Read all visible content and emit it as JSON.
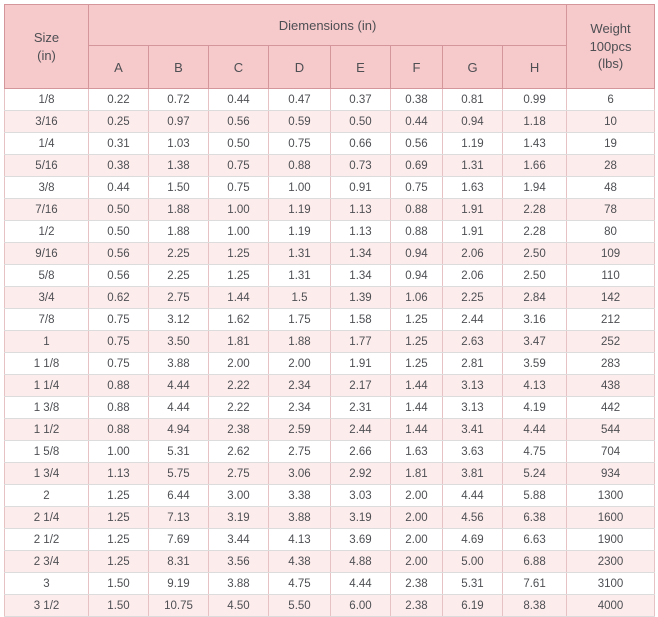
{
  "colors": {
    "header_bg": "#f6c9cb",
    "row_alt_bg": "#fdecec",
    "row_bg": "#ffffff",
    "border_dark": "#d4969a",
    "border_v": "#e6c2c4",
    "border_h": "#dcdcdc",
    "text": "#4d4f53"
  },
  "table": {
    "size_header": [
      "Size",
      "(in)"
    ],
    "dimensions_header": "Diemensions (in)",
    "weight_header": [
      "Weight",
      "100pcs",
      "(lbs)"
    ],
    "dim_columns": [
      "A",
      "B",
      "C",
      "D",
      "E",
      "F",
      "G",
      "H"
    ],
    "rows": [
      [
        "1/8",
        "0.22",
        "0.72",
        "0.44",
        "0.47",
        "0.37",
        "0.38",
        "0.81",
        "0.99",
        "6"
      ],
      [
        "3/16",
        "0.25",
        "0.97",
        "0.56",
        "0.59",
        "0.50",
        "0.44",
        "0.94",
        "1.18",
        "10"
      ],
      [
        "1/4",
        "0.31",
        "1.03",
        "0.50",
        "0.75",
        "0.66",
        "0.56",
        "1.19",
        "1.43",
        "19"
      ],
      [
        "5/16",
        "0.38",
        "1.38",
        "0.75",
        "0.88",
        "0.73",
        "0.69",
        "1.31",
        "1.66",
        "28"
      ],
      [
        "3/8",
        "0.44",
        "1.50",
        "0.75",
        "1.00",
        "0.91",
        "0.75",
        "1.63",
        "1.94",
        "48"
      ],
      [
        "7/16",
        "0.50",
        "1.88",
        "1.00",
        "1.19",
        "1.13",
        "0.88",
        "1.91",
        "2.28",
        "78"
      ],
      [
        "1/2",
        "0.50",
        "1.88",
        "1.00",
        "1.19",
        "1.13",
        "0.88",
        "1.91",
        "2.28",
        "80"
      ],
      [
        "9/16",
        "0.56",
        "2.25",
        "1.25",
        "1.31",
        "1.34",
        "0.94",
        "2.06",
        "2.50",
        "109"
      ],
      [
        "5/8",
        "0.56",
        "2.25",
        "1.25",
        "1.31",
        "1.34",
        "0.94",
        "2.06",
        "2.50",
        "110"
      ],
      [
        "3/4",
        "0.62",
        "2.75",
        "1.44",
        "1.5",
        "1.39",
        "1.06",
        "2.25",
        "2.84",
        "142"
      ],
      [
        "7/8",
        "0.75",
        "3.12",
        "1.62",
        "1.75",
        "1.58",
        "1.25",
        "2.44",
        "3.16",
        "212"
      ],
      [
        "1",
        "0.75",
        "3.50",
        "1.81",
        "1.88",
        "1.77",
        "1.25",
        "2.63",
        "3.47",
        "252"
      ],
      [
        "1 1/8",
        "0.75",
        "3.88",
        "2.00",
        "2.00",
        "1.91",
        "1.25",
        "2.81",
        "3.59",
        "283"
      ],
      [
        "1 1/4",
        "0.88",
        "4.44",
        "2.22",
        "2.34",
        "2.17",
        "1.44",
        "3.13",
        "4.13",
        "438"
      ],
      [
        "1 3/8",
        "0.88",
        "4.44",
        "2.22",
        "2.34",
        "2.31",
        "1.44",
        "3.13",
        "4.19",
        "442"
      ],
      [
        "1 1/2",
        "0.88",
        "4.94",
        "2.38",
        "2.59",
        "2.44",
        "1.44",
        "3.41",
        "4.44",
        "544"
      ],
      [
        "1 5/8",
        "1.00",
        "5.31",
        "2.62",
        "2.75",
        "2.66",
        "1.63",
        "3.63",
        "4.75",
        "704"
      ],
      [
        "1 3/4",
        "1.13",
        "5.75",
        "2.75",
        "3.06",
        "2.92",
        "1.81",
        "3.81",
        "5.24",
        "934"
      ],
      [
        "2",
        "1.25",
        "6.44",
        "3.00",
        "3.38",
        "3.03",
        "2.00",
        "4.44",
        "5.88",
        "1300"
      ],
      [
        "2 1/4",
        "1.25",
        "7.13",
        "3.19",
        "3.88",
        "3.19",
        "2.00",
        "4.56",
        "6.38",
        "1600"
      ],
      [
        "2 1/2",
        "1.25",
        "7.69",
        "3.44",
        "4.13",
        "3.69",
        "2.00",
        "4.69",
        "6.63",
        "1900"
      ],
      [
        "2 3/4",
        "1.25",
        "8.31",
        "3.56",
        "4.38",
        "4.88",
        "2.00",
        "5.00",
        "6.88",
        "2300"
      ],
      [
        "3",
        "1.50",
        "9.19",
        "3.88",
        "4.75",
        "4.44",
        "2.38",
        "5.31",
        "7.61",
        "3100"
      ],
      [
        "3 1/2",
        "1.50",
        "10.75",
        "4.50",
        "5.50",
        "6.00",
        "2.38",
        "6.19",
        "8.38",
        "4000"
      ]
    ]
  },
  "chart_data": {
    "type": "table",
    "title": "Diemensions (in)",
    "columns": [
      "Size (in)",
      "A",
      "B",
      "C",
      "D",
      "E",
      "F",
      "G",
      "H",
      "Weight 100pcs (lbs)"
    ],
    "rows": [
      [
        "1/8",
        0.22,
        0.72,
        0.44,
        0.47,
        0.37,
        0.38,
        0.81,
        0.99,
        6
      ],
      [
        "3/16",
        0.25,
        0.97,
        0.56,
        0.59,
        0.5,
        0.44,
        0.94,
        1.18,
        10
      ],
      [
        "1/4",
        0.31,
        1.03,
        0.5,
        0.75,
        0.66,
        0.56,
        1.19,
        1.43,
        19
      ],
      [
        "5/16",
        0.38,
        1.38,
        0.75,
        0.88,
        0.73,
        0.69,
        1.31,
        1.66,
        28
      ],
      [
        "3/8",
        0.44,
        1.5,
        0.75,
        1.0,
        0.91,
        0.75,
        1.63,
        1.94,
        48
      ],
      [
        "7/16",
        0.5,
        1.88,
        1.0,
        1.19,
        1.13,
        0.88,
        1.91,
        2.28,
        78
      ],
      [
        "1/2",
        0.5,
        1.88,
        1.0,
        1.19,
        1.13,
        0.88,
        1.91,
        2.28,
        80
      ],
      [
        "9/16",
        0.56,
        2.25,
        1.25,
        1.31,
        1.34,
        0.94,
        2.06,
        2.5,
        109
      ],
      [
        "5/8",
        0.56,
        2.25,
        1.25,
        1.31,
        1.34,
        0.94,
        2.06,
        2.5,
        110
      ],
      [
        "3/4",
        0.62,
        2.75,
        1.44,
        1.5,
        1.39,
        1.06,
        2.25,
        2.84,
        142
      ],
      [
        "7/8",
        0.75,
        3.12,
        1.62,
        1.75,
        1.58,
        1.25,
        2.44,
        3.16,
        212
      ],
      [
        "1",
        0.75,
        3.5,
        1.81,
        1.88,
        1.77,
        1.25,
        2.63,
        3.47,
        252
      ],
      [
        "1 1/8",
        0.75,
        3.88,
        2.0,
        2.0,
        1.91,
        1.25,
        2.81,
        3.59,
        283
      ],
      [
        "1 1/4",
        0.88,
        4.44,
        2.22,
        2.34,
        2.17,
        1.44,
        3.13,
        4.13,
        438
      ],
      [
        "1 3/8",
        0.88,
        4.44,
        2.22,
        2.34,
        2.31,
        1.44,
        3.13,
        4.19,
        442
      ],
      [
        "1 1/2",
        0.88,
        4.94,
        2.38,
        2.59,
        2.44,
        1.44,
        3.41,
        4.44,
        544
      ],
      [
        "1 5/8",
        1.0,
        5.31,
        2.62,
        2.75,
        2.66,
        1.63,
        3.63,
        4.75,
        704
      ],
      [
        "1 3/4",
        1.13,
        5.75,
        2.75,
        3.06,
        2.92,
        1.81,
        3.81,
        5.24,
        934
      ],
      [
        "2",
        1.25,
        6.44,
        3.0,
        3.38,
        3.03,
        2.0,
        4.44,
        5.88,
        1300
      ],
      [
        "2 1/4",
        1.25,
        7.13,
        3.19,
        3.88,
        3.19,
        2.0,
        4.56,
        6.38,
        1600
      ],
      [
        "2 1/2",
        1.25,
        7.69,
        3.44,
        4.13,
        3.69,
        2.0,
        4.69,
        6.63,
        1900
      ],
      [
        "2 3/4",
        1.25,
        8.31,
        3.56,
        4.38,
        4.88,
        2.0,
        5.0,
        6.88,
        2300
      ],
      [
        "3",
        1.5,
        9.19,
        3.88,
        4.75,
        4.44,
        2.38,
        5.31,
        7.61,
        3100
      ],
      [
        "3 1/2",
        1.5,
        10.75,
        4.5,
        5.5,
        6.0,
        2.38,
        6.19,
        8.38,
        4000
      ]
    ]
  }
}
